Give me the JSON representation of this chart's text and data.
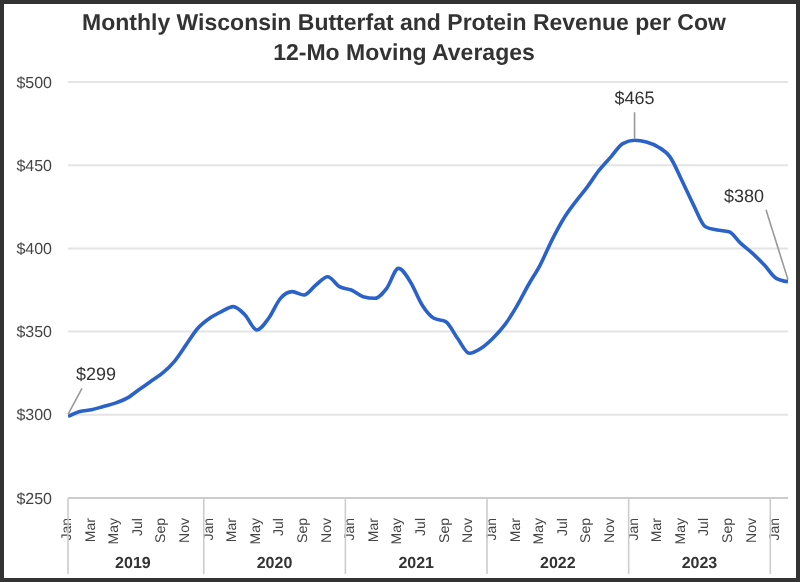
{
  "chart_data": {
    "type": "line",
    "title": "Monthly Wisconsin Butterfat and Protein Revenue per Cow",
    "subtitle": "12-Mo Moving Averages",
    "categories": [
      "Jan",
      null,
      "Mar",
      null,
      "May",
      null,
      "Jul",
      null,
      "Sep",
      null,
      "Nov",
      null,
      "Jan",
      null,
      "Mar",
      null,
      "May",
      null,
      "Jul",
      null,
      "Sep",
      null,
      "Nov",
      null,
      "Jan",
      null,
      "Mar",
      null,
      "May",
      null,
      "Jul",
      null,
      "Sep",
      null,
      "Nov",
      null,
      "Jan",
      null,
      "Mar",
      null,
      "May",
      null,
      "Jul",
      null,
      "Sep",
      null,
      "Nov",
      null,
      "Jan",
      null,
      "Mar",
      null,
      "May",
      null,
      "Jul",
      null,
      "Sep",
      null,
      "Nov",
      null,
      "Jan",
      null
    ],
    "series": [
      {
        "color": "#2a62c9",
        "values": [
          299,
          302,
          303,
          305,
          307,
          310,
          315,
          320,
          325,
          332,
          342,
          352,
          358,
          362,
          365,
          360,
          351,
          358,
          370,
          374,
          372,
          378,
          383,
          377,
          375,
          371,
          370,
          376,
          388,
          380,
          366,
          358,
          356,
          346,
          337,
          340,
          346,
          354,
          365,
          378,
          390,
          405,
          418,
          428,
          437,
          447,
          455,
          463,
          465,
          464,
          461,
          455,
          441,
          426,
          413,
          411,
          410,
          403,
          397,
          390,
          382,
          380
        ],
        "value_labels": [
          "$299",
          null,
          null,
          null,
          null,
          null,
          null,
          null,
          null,
          null,
          null,
          null,
          null,
          null,
          null,
          null,
          null,
          null,
          null,
          null,
          null,
          null,
          null,
          null,
          null,
          null,
          null,
          null,
          null,
          null,
          null,
          null,
          null,
          null,
          null,
          null,
          null,
          null,
          null,
          null,
          null,
          null,
          null,
          null,
          null,
          null,
          null,
          null,
          "$465",
          null,
          null,
          null,
          null,
          null,
          null,
          null,
          null,
          null,
          null,
          null,
          null,
          "$380"
        ]
      }
    ],
    "ylim": [
      250,
      500
    ],
    "yticks": [
      {
        "value": 250,
        "label": "$250"
      },
      {
        "value": 300,
        "label": "$300"
      },
      {
        "value": 350,
        "label": "$350"
      },
      {
        "value": 400,
        "label": "$400"
      },
      {
        "value": 450,
        "label": "$450"
      },
      {
        "value": 500,
        "label": "$500"
      }
    ],
    "annotations": [
      "2019",
      "2020",
      "2021",
      "2022",
      "2023"
    ],
    "grid": "y",
    "marker": "none",
    "line_style": "solid"
  }
}
